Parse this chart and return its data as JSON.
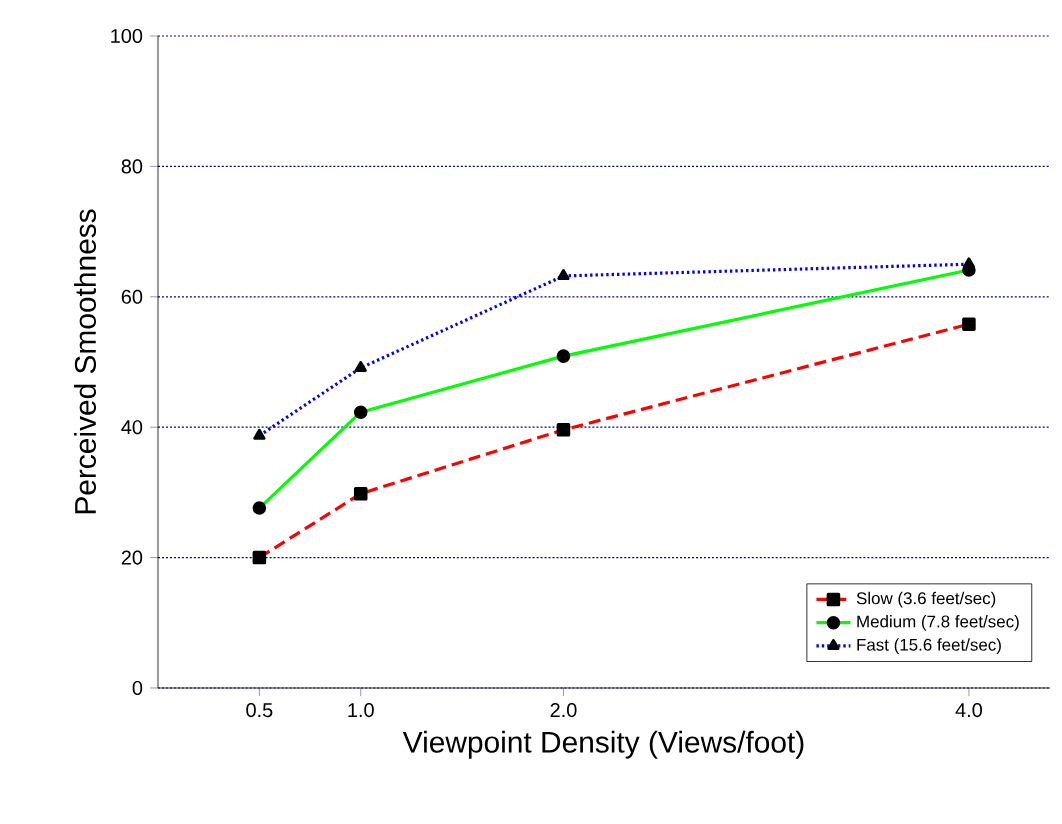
{
  "chart_data": {
    "type": "line",
    "xlabel": "Viewpoint Density (Views/foot)",
    "ylabel": "Perceived Smoothness",
    "x": [
      0.5,
      1.0,
      2.0,
      4.0
    ],
    "series": [
      {
        "name": "Slow (3.6 feet/sec)",
        "color": "#ff0000",
        "marker": "square",
        "line_style": "dashed",
        "values": [
          20,
          29.8,
          39.6,
          55.8
        ]
      },
      {
        "name": "Medium (7.8 feet/sec)",
        "color": "#00ff00",
        "marker": "circle",
        "line_style": "solid",
        "values": [
          27.6,
          42.3,
          50.9,
          64.1
        ]
      },
      {
        "name": "Fast (15.6 feet/sec)",
        "color": "#0000ff",
        "marker": "triangle",
        "line_style": "dotted",
        "values": [
          38.7,
          49.1,
          63.2,
          65.0
        ]
      }
    ],
    "xlim": [
      0,
      4.4
    ],
    "ylim": [
      0,
      100
    ],
    "xticks": [
      {
        "value": 0.5,
        "label": "0.5"
      },
      {
        "value": 1.0,
        "label": "1.0"
      },
      {
        "value": 2.0,
        "label": "2.0"
      },
      {
        "value": 4.0,
        "label": "4.0"
      }
    ],
    "yticks": [
      0,
      20,
      40,
      60,
      80,
      100
    ],
    "grid": "y",
    "legend": "bottom right"
  }
}
